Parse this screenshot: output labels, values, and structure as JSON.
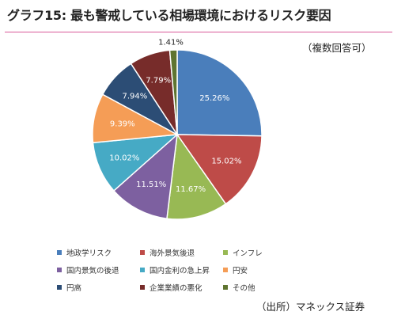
{
  "title": "グラフ15: 最も警戒している相場環境におけるリスク要因",
  "note": "（複数回答可）",
  "source": "（出所）マネックス証券",
  "chart_data": {
    "type": "pie",
    "title": "",
    "start": "12 o'clock, clockwise",
    "slices": [
      {
        "label": "地政学リスク",
        "value": 25.26,
        "value_label": "25.26%",
        "color": "#4a7ebb"
      },
      {
        "label": "海外景気後退",
        "value": 15.02,
        "value_label": "15.02%",
        "color": "#be4b48"
      },
      {
        "label": "インフレ",
        "value": 11.67,
        "value_label": "11.67%",
        "color": "#98b954"
      },
      {
        "label": "国内景気の後退",
        "value": 11.51,
        "value_label": "11.51%",
        "color": "#7d60a0"
      },
      {
        "label": "国内金利の急上昇",
        "value": 10.02,
        "value_label": "10.02%",
        "color": "#46aac5"
      },
      {
        "label": "円安",
        "value": 9.39,
        "value_label": "9.39%",
        "color": "#f59d56"
      },
      {
        "label": "円高",
        "value": 7.94,
        "value_label": "7.94%",
        "color": "#2c4d75"
      },
      {
        "label": "企業業績の悪化",
        "value": 7.79,
        "value_label": "7.79%",
        "color": "#772c2a"
      },
      {
        "label": "その他",
        "value": 1.41,
        "value_label": "1.41%",
        "color": "#5f7530"
      }
    ],
    "legend_position": "bottom"
  }
}
